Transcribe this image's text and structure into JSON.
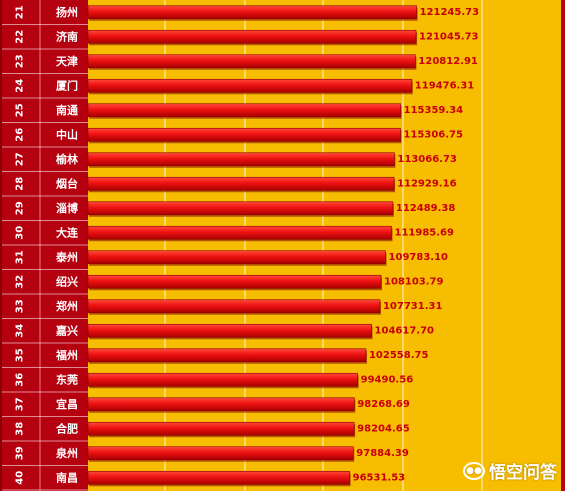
{
  "chart_data": {
    "type": "bar",
    "orientation": "horizontal",
    "rows": [
      {
        "rank": "21",
        "city": "扬州",
        "value": 121245.73
      },
      {
        "rank": "22",
        "city": "济南",
        "value": 121045.73
      },
      {
        "rank": "23",
        "city": "天津",
        "value": 120812.91
      },
      {
        "rank": "24",
        "city": "厦门",
        "value": 119476.31
      },
      {
        "rank": "25",
        "city": "南通",
        "value": 115359.34
      },
      {
        "rank": "26",
        "city": "中山",
        "value": 115306.75
      },
      {
        "rank": "27",
        "city": "榆林",
        "value": 113066.73
      },
      {
        "rank": "28",
        "city": "烟台",
        "value": 112929.16
      },
      {
        "rank": "29",
        "city": "淄博",
        "value": 112489.38
      },
      {
        "rank": "30",
        "city": "大连",
        "value": 111985.69
      },
      {
        "rank": "31",
        "city": "泰州",
        "value": 109783.1
      },
      {
        "rank": "32",
        "city": "绍兴",
        "value": 108103.79
      },
      {
        "rank": "33",
        "city": "郑州",
        "value": 107731.31
      },
      {
        "rank": "34",
        "city": "嘉兴",
        "value": 104617.7
      },
      {
        "rank": "35",
        "city": "福州",
        "value": 102558.75
      },
      {
        "rank": "36",
        "city": "东莞",
        "value": 99490.56
      },
      {
        "rank": "37",
        "city": "宜昌",
        "value": 98268.69
      },
      {
        "rank": "38",
        "city": "合肥",
        "value": 98204.65
      },
      {
        "rank": "39",
        "city": "泉州",
        "value": 97884.39
      },
      {
        "rank": "40",
        "city": "南昌",
        "value": 96531.53
      }
    ],
    "value_labels": [
      "121245.73",
      "121045.73",
      "120812.91",
      "119476.31",
      "115359.34",
      "115306.75",
      "113066.73",
      "112929.16",
      "112489.38",
      "111985.69",
      "109783.10",
      "108103.79",
      "107731.31",
      "104617.70",
      "102558.75",
      "99490.56",
      "98268.69",
      "98204.65",
      "97884.39",
      "96531.53"
    ],
    "xlim": [
      0,
      176000
    ],
    "grid": true
  },
  "colors": {
    "background": "#f7bd00",
    "table_bg": "#b5000f",
    "bar": "#ee1111",
    "bar_dark": "#a80000",
    "value_label": "#c8000a",
    "table_text": "#ffffff",
    "grid": "#ffffff"
  },
  "watermark": {
    "text": "悟空问答",
    "icon": "wukong-logo-icon"
  }
}
